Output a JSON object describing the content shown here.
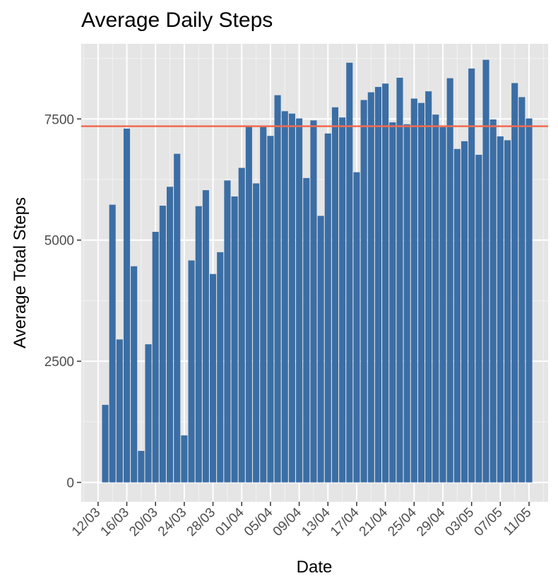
{
  "chart_data": {
    "type": "bar",
    "title": "Average Daily Steps",
    "xlabel": "Date",
    "ylabel": "Average Total Steps",
    "x_tick_labels": [
      "12/03",
      "16/03",
      "20/03",
      "24/03",
      "28/03",
      "01/04",
      "05/04",
      "09/04",
      "13/04",
      "17/04",
      "21/04",
      "25/04",
      "29/04",
      "03/05",
      "07/05",
      "11/05"
    ],
    "y_tick_labels": [
      "0",
      "2500",
      "5000",
      "7500"
    ],
    "y_ticks": [
      0,
      2500,
      5000,
      7500
    ],
    "ylim": [
      -400,
      9050
    ],
    "start_date": "2016-03-13",
    "categories": [
      "13/03",
      "14/03",
      "15/03",
      "16/03",
      "17/03",
      "18/03",
      "19/03",
      "20/03",
      "21/03",
      "22/03",
      "23/03",
      "24/03",
      "25/03",
      "26/03",
      "27/03",
      "28/03",
      "29/03",
      "30/03",
      "31/03",
      "01/04",
      "02/04",
      "03/04",
      "04/04",
      "05/04",
      "06/04",
      "07/04",
      "08/04",
      "09/04",
      "10/04",
      "11/04",
      "12/04",
      "13/04",
      "14/04",
      "15/04",
      "16/04",
      "17/04",
      "18/04",
      "19/04",
      "20/04",
      "21/04",
      "22/04",
      "23/04",
      "24/04",
      "25/04",
      "26/04",
      "27/04",
      "28/04",
      "29/04",
      "30/04",
      "01/05",
      "02/05",
      "03/05",
      "04/05",
      "05/05",
      "06/05",
      "07/05",
      "08/05",
      "09/05",
      "10/05",
      "11/05"
    ],
    "values": [
      1600,
      5730,
      2950,
      7300,
      4460,
      650,
      2850,
      5170,
      5710,
      6100,
      6780,
      970,
      4580,
      5700,
      6030,
      4300,
      4750,
      6230,
      5900,
      6490,
      7350,
      6170,
      7350,
      7150,
      7990,
      7660,
      7610,
      7510,
      6280,
      7470,
      5500,
      7200,
      7740,
      7530,
      8660,
      6400,
      7890,
      8050,
      8160,
      8230,
      7430,
      8350,
      7390,
      7920,
      7830,
      8070,
      7590,
      7330,
      8340,
      6880,
      7040,
      8540,
      6760,
      8720,
      7490,
      7140,
      7060,
      8240,
      7950,
      7510
    ],
    "reference_line": {
      "value": 7350,
      "color": "#f26b4f"
    },
    "bar_color": "#3b6ea5",
    "panel_background": "#e5e5e5",
    "grid": true,
    "legend": "none"
  }
}
